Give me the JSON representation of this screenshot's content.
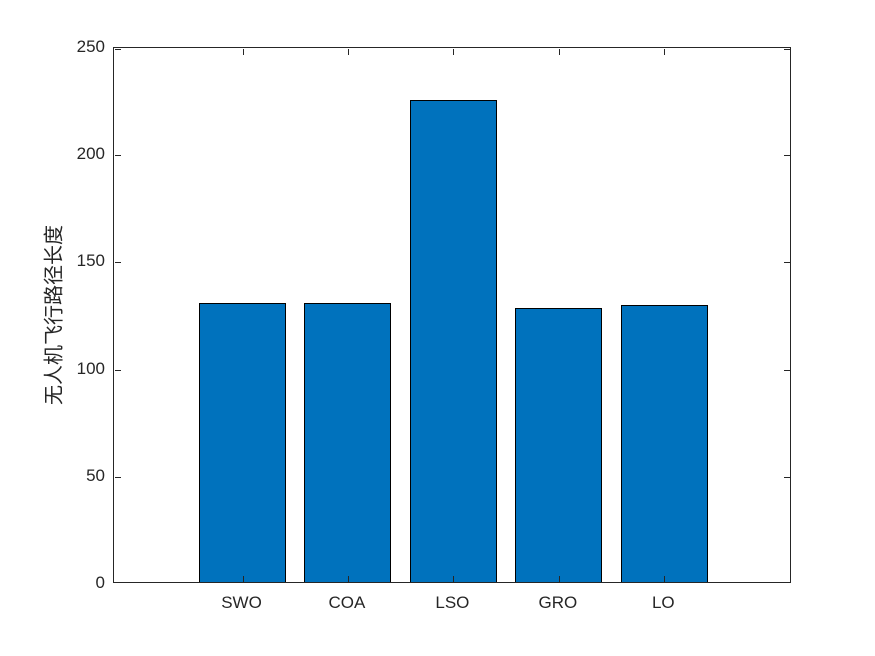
{
  "chart_data": {
    "type": "bar",
    "categories": [
      "SWO",
      "COA",
      "LSO",
      "GRO",
      "LO"
    ],
    "values": [
      130,
      130,
      225,
      128,
      129
    ],
    "title": "",
    "xlabel": "",
    "ylabel": "无人机飞行路径长度",
    "ylim": [
      0,
      250
    ],
    "yticks": [
      0,
      50,
      100,
      150,
      200,
      250
    ],
    "ytick_labels": [
      "0",
      "50",
      "100",
      "150",
      "200",
      "250"
    ],
    "bar_color": "#0072BD",
    "bar_edge_color": "#000000",
    "axis_color": "#262626",
    "background_color": "#ffffff",
    "grid": false,
    "legend": null,
    "tick_direction": "in",
    "box": true
  }
}
